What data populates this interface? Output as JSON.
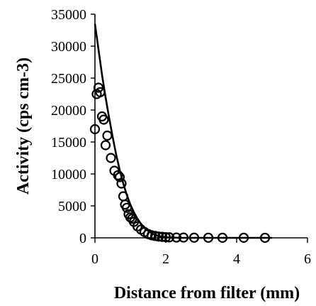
{
  "chart_data": {
    "type": "scatter",
    "title": "",
    "xlabel": "Distance from filter (mm)",
    "ylabel": "Activity (cps cm-3)",
    "xlim": [
      0,
      6
    ],
    "ylim": [
      0,
      35000
    ],
    "x_ticks": [
      "0",
      "2",
      "4",
      "6"
    ],
    "y_ticks": [
      "0",
      "5000",
      "10000",
      "15000",
      "20000",
      "25000",
      "30000",
      "35000"
    ],
    "grid": false,
    "legend": "none",
    "series": [
      {
        "kind": "points",
        "marker": "open-circle",
        "x": [
          0.0,
          0.05,
          0.1,
          0.15,
          0.2,
          0.25,
          0.3,
          0.35,
          0.45,
          0.55,
          0.65,
          0.7,
          0.75,
          0.8,
          0.85,
          0.9,
          0.95,
          1.0,
          1.05,
          1.1,
          1.2,
          1.3,
          1.4,
          1.5,
          1.6,
          1.7,
          1.8,
          1.9,
          2.0,
          2.1,
          2.3,
          2.5,
          2.8,
          3.2,
          3.6,
          4.2,
          4.8
        ],
        "y": [
          17000,
          22500,
          23500,
          22800,
          19000,
          18500,
          14500,
          16000,
          12500,
          10500,
          9800,
          9500,
          8500,
          6500,
          5200,
          4700,
          3700,
          3200,
          3000,
          2500,
          1800,
          1300,
          900,
          600,
          400,
          300,
          200,
          150,
          100,
          80,
          50,
          40,
          30,
          20,
          15,
          10,
          5
        ]
      },
      {
        "kind": "line",
        "style": "solid",
        "x": [
          0.0,
          0.1,
          0.2,
          0.3,
          0.4,
          0.5,
          0.6,
          0.7,
          0.8,
          0.9,
          1.0,
          1.1,
          1.2,
          1.3,
          1.4,
          1.5,
          1.6,
          1.7,
          1.8,
          1.9,
          2.0,
          2.2,
          2.5,
          3.0,
          3.5,
          4.0,
          4.5,
          5.0
        ],
        "y": [
          33500,
          29500,
          25500,
          22000,
          18800,
          15800,
          13000,
          10600,
          8500,
          6700,
          5200,
          4000,
          3000,
          2200,
          1600,
          1100,
          750,
          480,
          300,
          170,
          90,
          30,
          0,
          0,
          0,
          0,
          0,
          0
        ]
      }
    ]
  }
}
